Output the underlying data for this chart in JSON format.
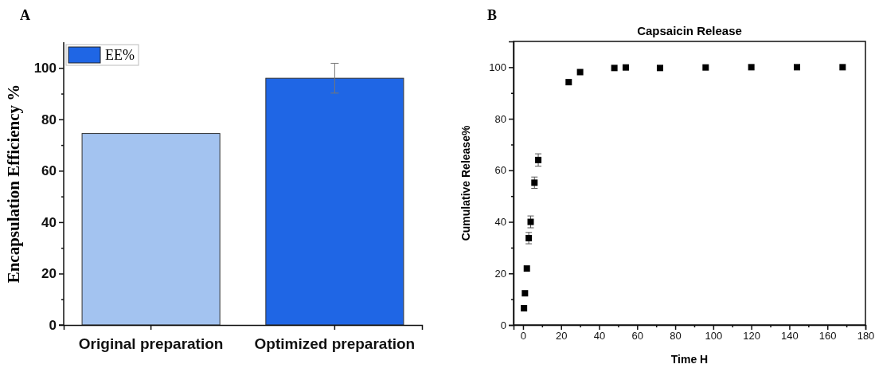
{
  "chart_data": [
    {
      "type": "bar",
      "ylabel": "Encapsulation Efficiency %",
      "annotations": [
        "A"
      ],
      "categories": [
        "Original preparation",
        "Optimized preparation"
      ],
      "series": [
        {
          "name": "EE%",
          "color": "#1f66e5",
          "colors": [
            "#a3c3f0",
            "#1f66e5"
          ],
          "values": [
            74.5,
            96
          ],
          "errors": [
            null,
            5.8
          ]
        }
      ],
      "ylim": [
        0,
        110
      ],
      "yticks": [
        0,
        {
          "value": 10,
          "label": null
        },
        20,
        {
          "value": 30,
          "label": null
        },
        40,
        {
          "value": 50,
          "label": null
        },
        60,
        {
          "value": 70,
          "label": null
        },
        80,
        {
          "value": 90,
          "label": null
        },
        100
      ],
      "legend": "top left",
      "grid": false
    },
    {
      "type": "scatter",
      "title": "Capsaicin Release",
      "xlabel": "Time H",
      "ylabel": "Cumulative Release%",
      "annotations": [
        "B"
      ],
      "series": [
        {
          "color": "#000000",
          "x": [
            0.5,
            1,
            2,
            3,
            4,
            6,
            8,
            24,
            30,
            48,
            54,
            72,
            96,
            120,
            144,
            168
          ],
          "values": [
            6.5,
            12.3,
            21.9,
            33.7,
            40,
            55.2,
            64,
            94.2,
            98.1,
            99.7,
            99.9,
            99.7,
            99.9,
            100,
            100,
            100
          ],
          "errors": [
            null,
            null,
            null,
            2.2,
            2.3,
            2.2,
            2.4,
            null,
            null,
            null,
            null,
            null,
            null,
            null,
            null,
            null
          ]
        }
      ],
      "xlim": [
        -5,
        180
      ],
      "xticks": [
        0,
        {
          "value": 10,
          "label": null
        },
        20,
        {
          "value": 30,
          "label": null
        },
        40,
        {
          "value": 50,
          "label": null
        },
        60,
        {
          "value": 70,
          "label": null
        },
        80,
        {
          "value": 90,
          "label": null
        },
        100,
        {
          "value": 110,
          "label": null
        },
        120,
        {
          "value": 130,
          "label": null
        },
        140,
        {
          "value": 150,
          "label": null
        },
        160,
        {
          "value": 170,
          "label": null
        },
        180
      ],
      "ylim": [
        0,
        110
      ],
      "yticks": [
        0,
        {
          "value": 10,
          "label": null
        },
        20,
        {
          "value": 30,
          "label": null
        },
        40,
        {
          "value": 50,
          "label": null
        },
        60,
        {
          "value": 70,
          "label": null
        },
        80,
        {
          "value": 90,
          "label": null
        },
        100
      ],
      "marker": "square",
      "legend": false,
      "grid": false
    }
  ]
}
